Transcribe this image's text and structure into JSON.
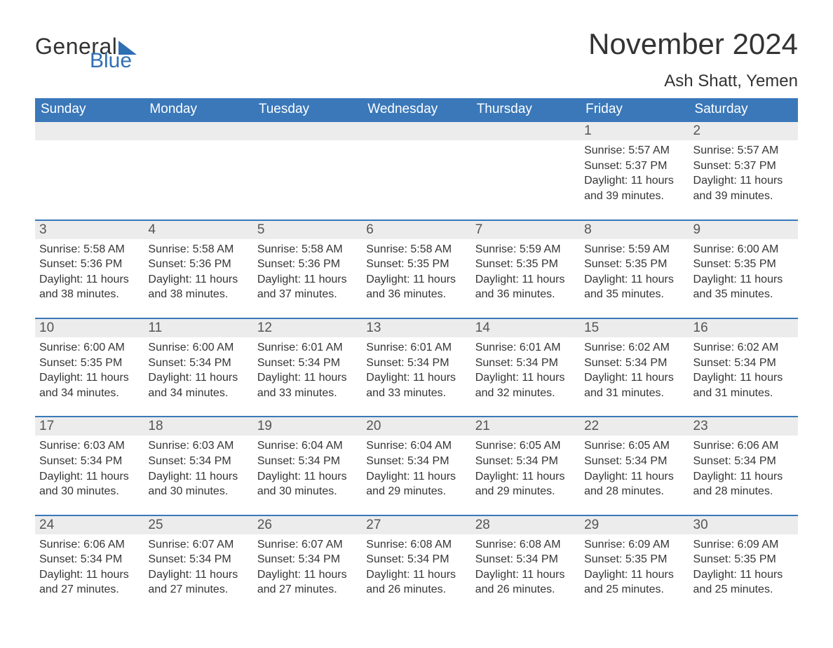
{
  "logo": {
    "word1": "General",
    "word2": "Blue",
    "sail_color": "#2f6fb4",
    "text_color_dark": "#333333"
  },
  "header": {
    "month_title": "November 2024",
    "location": "Ash Shatt, Yemen"
  },
  "styling": {
    "header_bg": "#3a78b9",
    "header_text": "#ffffff",
    "daynum_bg": "#ececec",
    "row_border_color": "#3a78b9",
    "body_text_color": "#353535",
    "font_family": "Arial, Helvetica, sans-serif",
    "month_title_fontsize": 42,
    "location_fontsize": 24,
    "dow_fontsize": 19,
    "daynum_fontsize": 19,
    "body_fontsize": 16
  },
  "days_of_week": [
    "Sunday",
    "Monday",
    "Tuesday",
    "Wednesday",
    "Thursday",
    "Friday",
    "Saturday"
  ],
  "weeks": [
    [
      {
        "empty": true
      },
      {
        "empty": true
      },
      {
        "empty": true
      },
      {
        "empty": true
      },
      {
        "empty": true
      },
      {
        "day": "1",
        "sunrise": "Sunrise: 5:57 AM",
        "sunset": "Sunset: 5:37 PM",
        "daylight": "Daylight: 11 hours and 39 minutes."
      },
      {
        "day": "2",
        "sunrise": "Sunrise: 5:57 AM",
        "sunset": "Sunset: 5:37 PM",
        "daylight": "Daylight: 11 hours and 39 minutes."
      }
    ],
    [
      {
        "day": "3",
        "sunrise": "Sunrise: 5:58 AM",
        "sunset": "Sunset: 5:36 PM",
        "daylight": "Daylight: 11 hours and 38 minutes."
      },
      {
        "day": "4",
        "sunrise": "Sunrise: 5:58 AM",
        "sunset": "Sunset: 5:36 PM",
        "daylight": "Daylight: 11 hours and 38 minutes."
      },
      {
        "day": "5",
        "sunrise": "Sunrise: 5:58 AM",
        "sunset": "Sunset: 5:36 PM",
        "daylight": "Daylight: 11 hours and 37 minutes."
      },
      {
        "day": "6",
        "sunrise": "Sunrise: 5:58 AM",
        "sunset": "Sunset: 5:35 PM",
        "daylight": "Daylight: 11 hours and 36 minutes."
      },
      {
        "day": "7",
        "sunrise": "Sunrise: 5:59 AM",
        "sunset": "Sunset: 5:35 PM",
        "daylight": "Daylight: 11 hours and 36 minutes."
      },
      {
        "day": "8",
        "sunrise": "Sunrise: 5:59 AM",
        "sunset": "Sunset: 5:35 PM",
        "daylight": "Daylight: 11 hours and 35 minutes."
      },
      {
        "day": "9",
        "sunrise": "Sunrise: 6:00 AM",
        "sunset": "Sunset: 5:35 PM",
        "daylight": "Daylight: 11 hours and 35 minutes."
      }
    ],
    [
      {
        "day": "10",
        "sunrise": "Sunrise: 6:00 AM",
        "sunset": "Sunset: 5:35 PM",
        "daylight": "Daylight: 11 hours and 34 minutes."
      },
      {
        "day": "11",
        "sunrise": "Sunrise: 6:00 AM",
        "sunset": "Sunset: 5:34 PM",
        "daylight": "Daylight: 11 hours and 34 minutes."
      },
      {
        "day": "12",
        "sunrise": "Sunrise: 6:01 AM",
        "sunset": "Sunset: 5:34 PM",
        "daylight": "Daylight: 11 hours and 33 minutes."
      },
      {
        "day": "13",
        "sunrise": "Sunrise: 6:01 AM",
        "sunset": "Sunset: 5:34 PM",
        "daylight": "Daylight: 11 hours and 33 minutes."
      },
      {
        "day": "14",
        "sunrise": "Sunrise: 6:01 AM",
        "sunset": "Sunset: 5:34 PM",
        "daylight": "Daylight: 11 hours and 32 minutes."
      },
      {
        "day": "15",
        "sunrise": "Sunrise: 6:02 AM",
        "sunset": "Sunset: 5:34 PM",
        "daylight": "Daylight: 11 hours and 31 minutes."
      },
      {
        "day": "16",
        "sunrise": "Sunrise: 6:02 AM",
        "sunset": "Sunset: 5:34 PM",
        "daylight": "Daylight: 11 hours and 31 minutes."
      }
    ],
    [
      {
        "day": "17",
        "sunrise": "Sunrise: 6:03 AM",
        "sunset": "Sunset: 5:34 PM",
        "daylight": "Daylight: 11 hours and 30 minutes."
      },
      {
        "day": "18",
        "sunrise": "Sunrise: 6:03 AM",
        "sunset": "Sunset: 5:34 PM",
        "daylight": "Daylight: 11 hours and 30 minutes."
      },
      {
        "day": "19",
        "sunrise": "Sunrise: 6:04 AM",
        "sunset": "Sunset: 5:34 PM",
        "daylight": "Daylight: 11 hours and 30 minutes."
      },
      {
        "day": "20",
        "sunrise": "Sunrise: 6:04 AM",
        "sunset": "Sunset: 5:34 PM",
        "daylight": "Daylight: 11 hours and 29 minutes."
      },
      {
        "day": "21",
        "sunrise": "Sunrise: 6:05 AM",
        "sunset": "Sunset: 5:34 PM",
        "daylight": "Daylight: 11 hours and 29 minutes."
      },
      {
        "day": "22",
        "sunrise": "Sunrise: 6:05 AM",
        "sunset": "Sunset: 5:34 PM",
        "daylight": "Daylight: 11 hours and 28 minutes."
      },
      {
        "day": "23",
        "sunrise": "Sunrise: 6:06 AM",
        "sunset": "Sunset: 5:34 PM",
        "daylight": "Daylight: 11 hours and 28 minutes."
      }
    ],
    [
      {
        "day": "24",
        "sunrise": "Sunrise: 6:06 AM",
        "sunset": "Sunset: 5:34 PM",
        "daylight": "Daylight: 11 hours and 27 minutes."
      },
      {
        "day": "25",
        "sunrise": "Sunrise: 6:07 AM",
        "sunset": "Sunset: 5:34 PM",
        "daylight": "Daylight: 11 hours and 27 minutes."
      },
      {
        "day": "26",
        "sunrise": "Sunrise: 6:07 AM",
        "sunset": "Sunset: 5:34 PM",
        "daylight": "Daylight: 11 hours and 27 minutes."
      },
      {
        "day": "27",
        "sunrise": "Sunrise: 6:08 AM",
        "sunset": "Sunset: 5:34 PM",
        "daylight": "Daylight: 11 hours and 26 minutes."
      },
      {
        "day": "28",
        "sunrise": "Sunrise: 6:08 AM",
        "sunset": "Sunset: 5:34 PM",
        "daylight": "Daylight: 11 hours and 26 minutes."
      },
      {
        "day": "29",
        "sunrise": "Sunrise: 6:09 AM",
        "sunset": "Sunset: 5:35 PM",
        "daylight": "Daylight: 11 hours and 25 minutes."
      },
      {
        "day": "30",
        "sunrise": "Sunrise: 6:09 AM",
        "sunset": "Sunset: 5:35 PM",
        "daylight": "Daylight: 11 hours and 25 minutes."
      }
    ]
  ]
}
